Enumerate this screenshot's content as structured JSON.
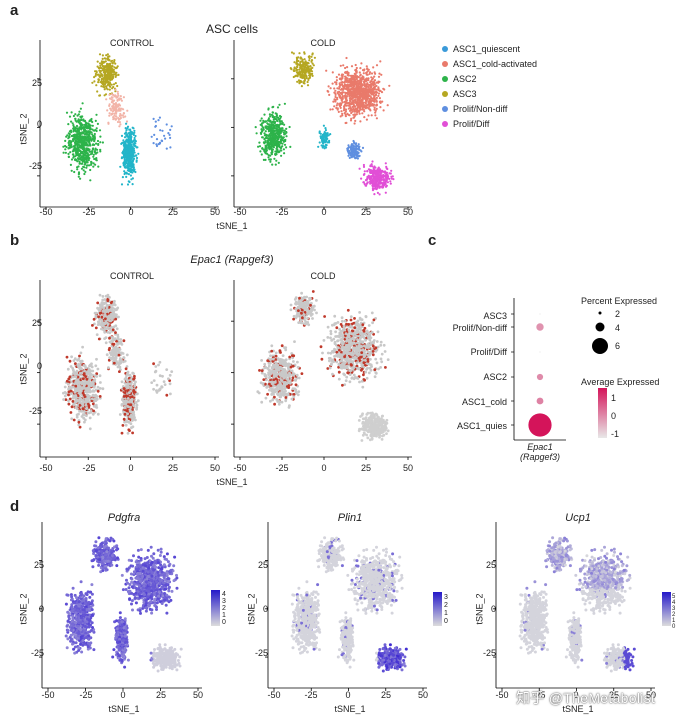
{
  "figure": {
    "panels": {
      "a": {
        "letter": "a",
        "title": "ASC cells",
        "sub_titles": [
          "CONTROL",
          "COLD"
        ],
        "xlabel": "tSNE_1",
        "ylabel": "tSNE_2",
        "x_ticks": [
          "-50",
          "-25",
          "0",
          "25",
          "50"
        ],
        "y_ticks": [
          "25",
          "0",
          "-25"
        ],
        "legend": [
          {
            "label": "ASC1_quiescent",
            "color": "#3a9ad9"
          },
          {
            "label": "ASC1_cold-activated",
            "color": "#e97a6b"
          },
          {
            "label": "ASC2",
            "color": "#2db34a"
          },
          {
            "label": "ASC3",
            "color": "#b5a722"
          },
          {
            "label": "Prolif/Non-diff",
            "color": "#5f8fe0"
          },
          {
            "label": "Prolif/Diff",
            "color": "#e14fd6"
          }
        ]
      },
      "b": {
        "letter": "b",
        "title": "Epac1 (Rapgef3)",
        "sub_titles": [
          "CONTROL",
          "COLD"
        ],
        "xlabel": "tSNE_1",
        "ylabel": "tSNE_2",
        "x_ticks": [
          "-50",
          "-25",
          "0",
          "25",
          "50"
        ],
        "y_ticks": [
          "25",
          "0",
          "-25"
        ]
      },
      "c": {
        "letter": "c",
        "gene_label": "Epac1",
        "gene_sublabel": "(Rapgef3)",
        "percent_title": "Percent Expressed",
        "percent_ticks": [
          "2",
          "4",
          "6"
        ],
        "avg_title": "Average Expressed",
        "avg_ticks": [
          "1",
          "0",
          "-1"
        ]
      },
      "d": {
        "letter": "d",
        "xlabel": "tSNE_1",
        "ylabel": "tSNE_2",
        "x_ticks": [
          "-50",
          "-25",
          "0",
          "25",
          "50"
        ],
        "y_ticks": [
          "25",
          "0",
          "-25"
        ],
        "genes": [
          {
            "name": "Pdgfra",
            "scale": [
              "4",
              "3",
              "2",
              "1",
              "0"
            ]
          },
          {
            "name": "Plin1",
            "scale": [
              "3",
              "2",
              "1",
              "0"
            ]
          },
          {
            "name": "Ucp1",
            "scale": [
              "5",
              "4",
              "3",
              "2",
              "1",
              "0"
            ]
          }
        ]
      }
    },
    "watermark": "知乎 @TheMetabolist"
  },
  "chart_data": [
    {
      "type": "scatter",
      "title": "Epac1 (Rapgef3) dot plot",
      "categories": [
        "ASC3",
        "Prolif/Non-diff",
        "Prolif/Diff",
        "ASC2",
        "ASC1_cold",
        "ASC1_quies"
      ],
      "percent_expressed": [
        0.3,
        2.2,
        0.3,
        1.8,
        2.0,
        6.8
      ],
      "average_expressed": [
        -1,
        0,
        -1,
        0.1,
        0.2,
        1.5
      ]
    }
  ]
}
